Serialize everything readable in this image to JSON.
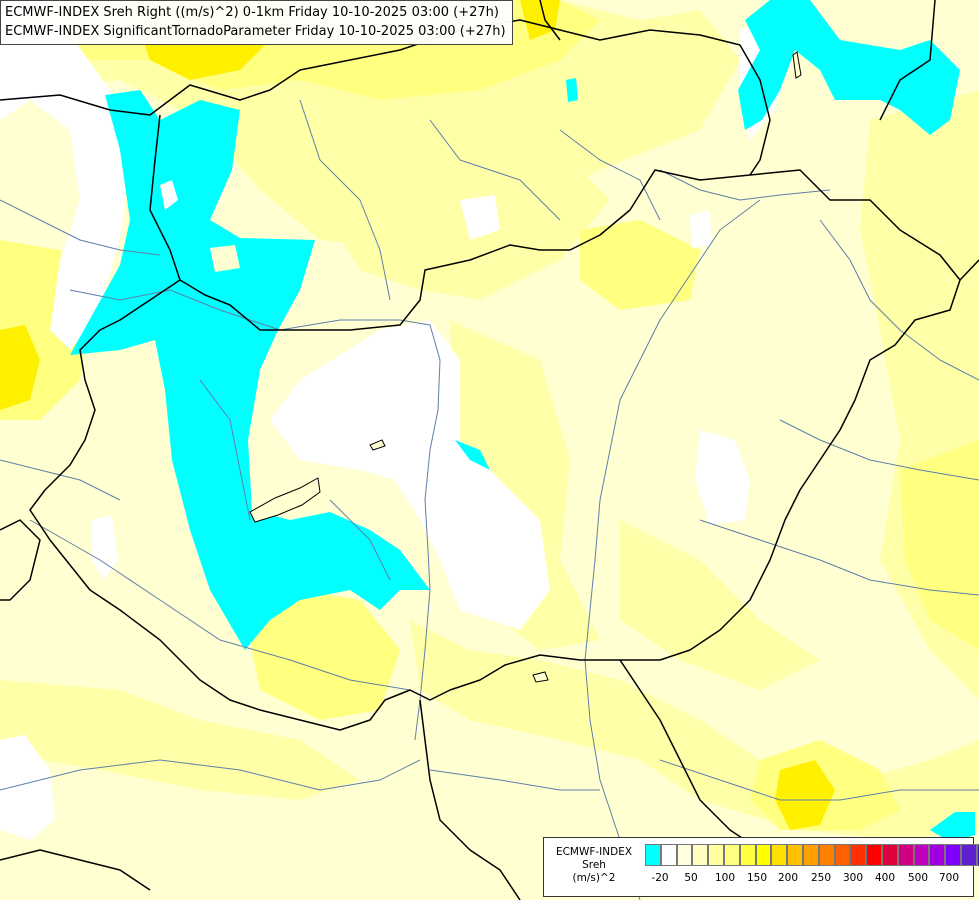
{
  "title": {
    "line1": "ECMWF-INDEX Sreh Right ((m/s)^2) 0-1km Friday 10-10-2025 03:00 (+27h)",
    "line2": "ECMWF-INDEX SignificantTornadoParameter Friday 10-10-2025 03:00 (+27h)"
  },
  "legend": {
    "source": "ECMWF-INDEX",
    "variable": "Sreh",
    "unit": "(m/s)^2",
    "tick_labels": [
      "-20",
      "50",
      "100",
      "150",
      "200",
      "250",
      "300",
      "400",
      "500",
      "700"
    ],
    "colors": [
      "#00ffff",
      "#ffffff",
      "#ffffe0",
      "#ffffc0",
      "#ffffa0",
      "#ffff80",
      "#ffff40",
      "#ffff00",
      "#ffe000",
      "#ffc000",
      "#ffa000",
      "#ff8000",
      "#ff6000",
      "#ff3000",
      "#ff0000",
      "#e00040",
      "#d00080",
      "#c000c0",
      "#a000e0",
      "#8000ff",
      "#6020d0",
      "#4010b0",
      "#200090",
      "#000080"
    ]
  },
  "map_colors": {
    "cyan": "#00ffff",
    "white": "#ffffff",
    "pale": "#ffffd2",
    "light": "#ffffa8",
    "yellow": "#ffff80",
    "gold": "#fff000",
    "border": "#000000",
    "river": "#5f7fa8"
  }
}
